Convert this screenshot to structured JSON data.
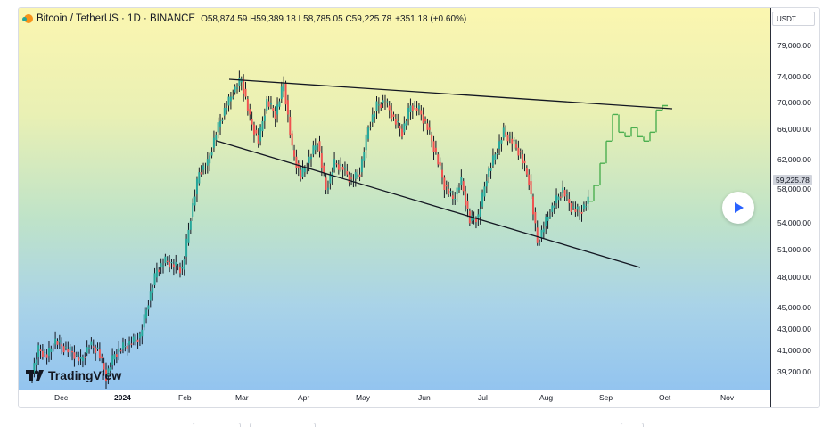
{
  "symbol": {
    "name": "Bitcoin / TetherUS · 1D · BINANCE",
    "ohlc": "O58,874.59 H59,389.18 L58,785.05 C59,225.78",
    "change": "+351.18 (+0.60%)"
  },
  "currency": "USDT",
  "price_labels": [
    "79,000.00",
    "74,000.00",
    "70,000.00",
    "66,000.00",
    "62,000.00",
    "58,000.00",
    "54,000.00",
    "51,000.00",
    "48,000.00",
    "45,000.00",
    "43,000.00",
    "41,000.00",
    "39,200.00"
  ],
  "current_price": "59,225.78",
  "time_labels": [
    "Dec",
    "2024",
    "Feb",
    "Mar",
    "Apr",
    "May",
    "Jun",
    "Jul",
    "Aug",
    "Sep",
    "Oct",
    "Nov"
  ],
  "logo_text": "TradingView",
  "colors": {
    "up": "#26a69a",
    "down": "#ef5350",
    "projection": "#4caf50"
  },
  "chart_data": {
    "type": "candlestick",
    "series": [
      {
        "values": [
          39000,
          42500,
          41800,
          43500,
          42700,
          42200,
          41200,
          43000,
          42500,
          39500,
          42000,
          42800,
          43300,
          44000,
          48000,
          51500,
          52500,
          52000,
          51500,
          57500,
          62500,
          63500,
          67000,
          69500,
          71500,
          73000,
          68500,
          66000,
          70500,
          69000,
          72500,
          65000,
          62000,
          64000,
          66000,
          60500,
          63500,
          63000,
          61500,
          62500,
          67500,
          70000,
          70500,
          68500,
          67000,
          70000,
          69500,
          67500,
          64500,
          61000,
          59500,
          61500,
          57000,
          57500,
          62000,
          64500,
          67000,
          66000,
          64500,
          61500,
          54500,
          57000,
          59000,
          60500,
          58500,
          58000,
          59225.78
        ]
      }
    ],
    "projection_note": "",
    "trendlines": 2,
    "price_range": [
      38000,
      81000
    ]
  }
}
